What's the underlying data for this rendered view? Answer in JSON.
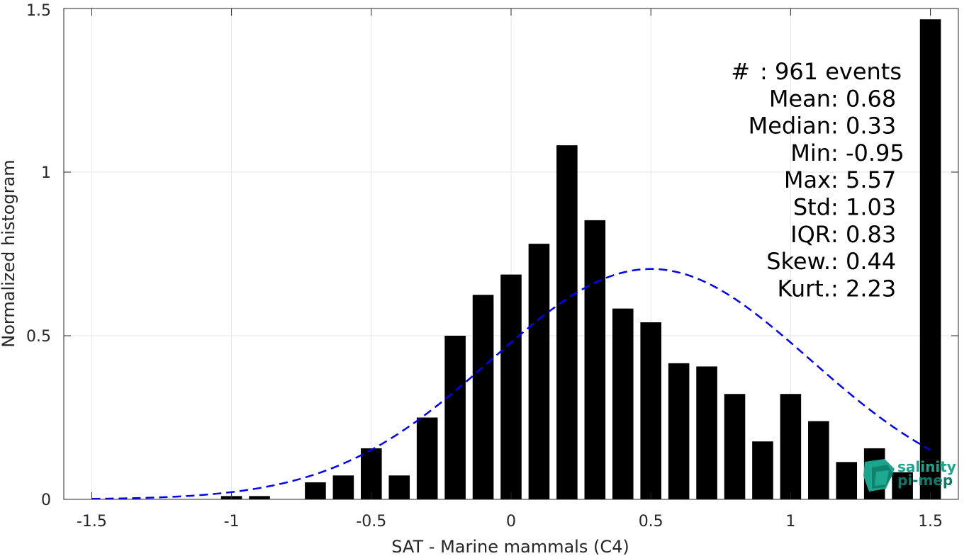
{
  "chart_data": {
    "type": "bar",
    "xlabel": "SAT - Marine mammals (C4)",
    "ylabel": "Normalized histogram",
    "xlim": [
      -1.6,
      1.6
    ],
    "ylim": [
      0,
      1.5
    ],
    "grid": true,
    "xticks": [
      -1.5,
      -1,
      -0.5,
      0,
      0.5,
      1,
      1.5
    ],
    "xtick_labels": [
      "-1.5",
      "-1",
      "-0.5",
      "0",
      "0.5",
      "1",
      "1.5"
    ],
    "yticks": [
      0,
      0.5,
      1,
      1.5
    ],
    "ytick_labels": [
      "0",
      "0.5",
      "1",
      "1.5"
    ],
    "bar_width": 0.075,
    "bars": [
      {
        "x": -1.0,
        "y": 0.01
      },
      {
        "x": -0.9,
        "y": 0.01
      },
      {
        "x": -0.7,
        "y": 0.052
      },
      {
        "x": -0.6,
        "y": 0.073
      },
      {
        "x": -0.5,
        "y": 0.156
      },
      {
        "x": -0.4,
        "y": 0.073
      },
      {
        "x": -0.3,
        "y": 0.25
      },
      {
        "x": -0.2,
        "y": 0.5
      },
      {
        "x": -0.1,
        "y": 0.625
      },
      {
        "x": 0.0,
        "y": 0.687
      },
      {
        "x": 0.1,
        "y": 0.781
      },
      {
        "x": 0.2,
        "y": 1.082
      },
      {
        "x": 0.3,
        "y": 0.853
      },
      {
        "x": 0.4,
        "y": 0.583
      },
      {
        "x": 0.5,
        "y": 0.541
      },
      {
        "x": 0.6,
        "y": 0.416
      },
      {
        "x": 0.7,
        "y": 0.406
      },
      {
        "x": 0.8,
        "y": 0.322
      },
      {
        "x": 0.9,
        "y": 0.177
      },
      {
        "x": 1.0,
        "y": 0.322
      },
      {
        "x": 1.1,
        "y": 0.239
      },
      {
        "x": 1.2,
        "y": 0.114
      },
      {
        "x": 1.3,
        "y": 0.156
      },
      {
        "x": 1.4,
        "y": 0.083
      },
      {
        "x": 1.5,
        "y": 1.467
      }
    ],
    "fit_curve": {
      "style": "dashed",
      "color": "#0000ff",
      "mean": 0.5,
      "std": 0.57,
      "peak": 0.704,
      "x_range": [
        -1.5,
        1.5
      ]
    }
  },
  "stats": [
    {
      "label": "#",
      "value": ": 961 events"
    },
    {
      "label": "Mean",
      "value": ": 0.68"
    },
    {
      "label": "Median",
      "value": ": 0.33"
    },
    {
      "label": "Min",
      "value": ": -0.95"
    },
    {
      "label": "Max",
      "value": ": 5.57"
    },
    {
      "label": "Std",
      "value": ": 1.03"
    },
    {
      "label": "IQR",
      "value": ": 0.83"
    },
    {
      "label": "Skew.",
      "value": ": 0.44"
    },
    {
      "label": "Kurt.",
      "value": ": 2.23"
    }
  ],
  "logo": {
    "line1": "salinity",
    "line2": "pi-mep",
    "color": "#1aa58c",
    "icon": "salinity-pimep-logo-icon"
  }
}
